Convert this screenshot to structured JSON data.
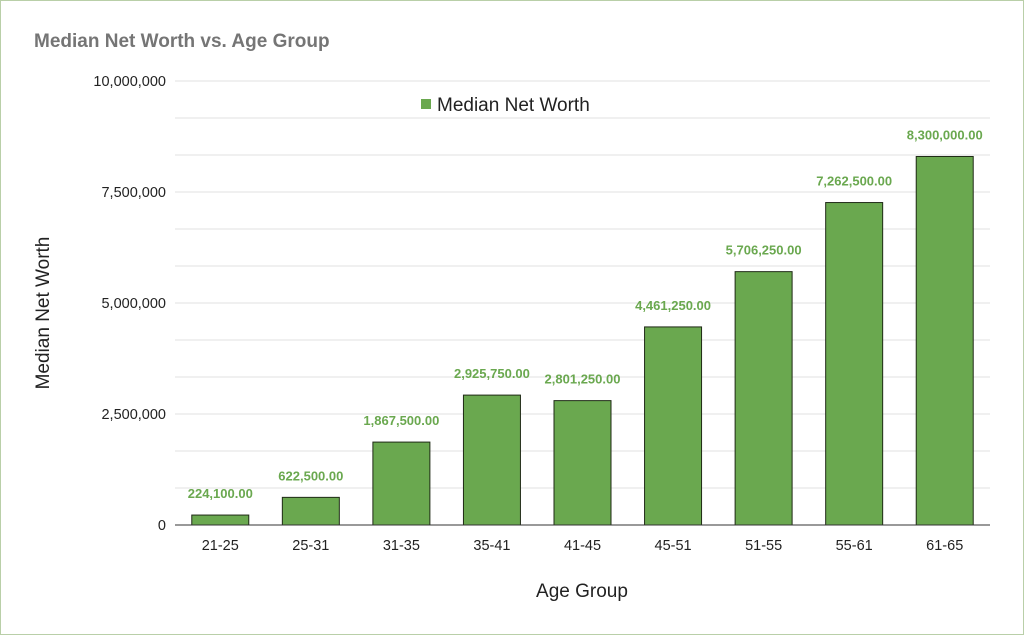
{
  "chart_data": {
    "type": "bar",
    "title": "Median Net Worth vs. Age Group",
    "xlabel": "Age Group",
    "ylabel": "Median Net Worth",
    "categories": [
      "21-25",
      "25-31",
      "31-35",
      "35-41",
      "41-45",
      "45-51",
      "51-55",
      "55-61",
      "61-65"
    ],
    "series": [
      {
        "name": "Median Net Worth",
        "values": [
          224100,
          622500,
          1867500,
          2925750,
          2801250,
          4461250,
          5706250,
          7262500,
          8300000
        ],
        "data_labels": [
          "224,100.00",
          "622,500.00",
          "1,867,500.00",
          "2,925,750.00",
          "2,801,250.00",
          "4,461,250.00",
          "5,706,250.00",
          "7,262,500.00",
          "8,300,000.00"
        ]
      }
    ],
    "ylim": [
      0,
      10000000
    ],
    "yticks": [
      0,
      2500000,
      5000000,
      7500000,
      10000000
    ],
    "ytick_labels": [
      "0",
      "2,500,000",
      "5,000,000",
      "7,500,000",
      "10,000,000"
    ],
    "grid": true,
    "legend_position": "top-center",
    "colors": {
      "bar_fill": "#6aa84f",
      "bar_stroke": "#1f2a16",
      "data_label": "#6aa84f",
      "title": "#757575",
      "grid": "#e0e0e0",
      "frame": "#b9cfa8"
    }
  }
}
